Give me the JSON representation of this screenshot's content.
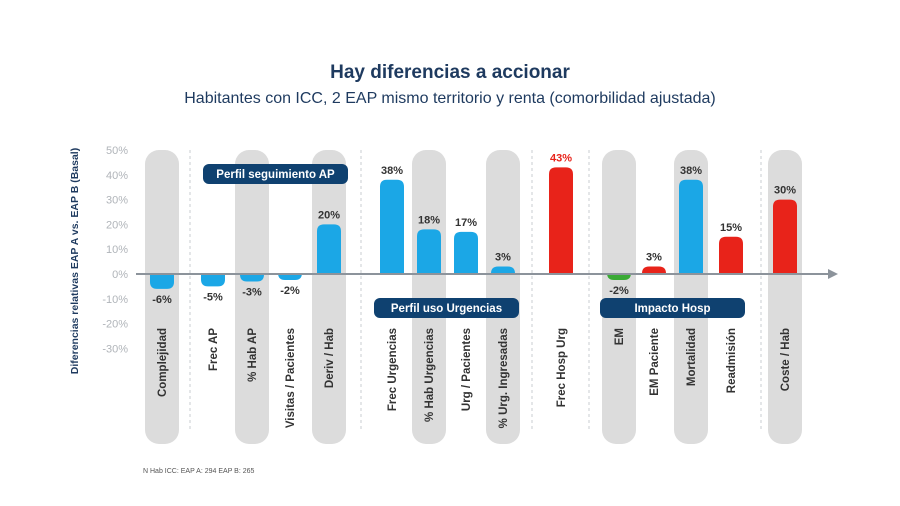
{
  "header": {
    "title": "Hay diferencias a accionar",
    "subtitle": "Habitantes con ICC, 2 EAP mismo territorio y renta (comorbilidad ajustada)"
  },
  "footnote": "N Hab ICC: EAP A: 294 EAP B: 265",
  "colors": {
    "blue": "#1ba7e6",
    "red": "#e8231a",
    "green": "#3aaa35",
    "navy": "#0f4170",
    "pill": "#dcdcdc",
    "axis": "#8c939b",
    "label": "#333333",
    "tick": "#b0b4b9"
  },
  "chart_data": {
    "type": "bar",
    "title": "Hay diferencias a accionar",
    "subtitle": "Habitantes con ICC, 2 EAP mismo territorio y renta (comorbilidad ajustada)",
    "ylabel": "Diferencias relativas EAP A vs. EAP B (Basal)",
    "xlabel": "",
    "ylim": [
      -30,
      50
    ],
    "yticks": [
      "50%",
      "40%",
      "30%",
      "20%",
      "10%",
      "0%",
      "-10%",
      "-20%",
      "-30%"
    ],
    "ytick_values": [
      50,
      40,
      30,
      20,
      10,
      0,
      -10,
      -20,
      -30
    ],
    "categories": [
      "Complejidad",
      "Frec AP",
      "% Hab AP",
      "Visitas / Pacientes",
      "Deriv / Hab",
      "Frec Urgencias",
      "% Hab Urgencias",
      "Urg / Pacientes",
      "% Urg. Ingresadas",
      "Frec Hosp Urg",
      "EM",
      "EM Paciente",
      "Mortalidad",
      "Readmisión",
      "Coste / Hab"
    ],
    "values": [
      -6,
      -5,
      -3,
      -2,
      20,
      38,
      18,
      17,
      3,
      43,
      -2,
      3,
      38,
      15,
      30
    ],
    "value_labels": [
      "-6%",
      "-5%",
      "-3%",
      "-2%",
      "20%",
      "38%",
      "18%",
      "17%",
      "3%",
      "43%",
      "-2%",
      "3%",
      "38%",
      "15%",
      "30%"
    ],
    "bar_colors": [
      "blue",
      "blue",
      "blue",
      "blue",
      "blue",
      "blue",
      "blue",
      "blue",
      "blue",
      "red",
      "green",
      "red",
      "blue",
      "red",
      "red"
    ],
    "label_colors": [
      "label",
      "label",
      "label",
      "label",
      "label",
      "label",
      "label",
      "label",
      "label",
      "red",
      "label",
      "label",
      "label",
      "label",
      "label"
    ],
    "shaded_background": [
      true,
      false,
      true,
      false,
      true,
      false,
      true,
      false,
      true,
      false,
      true,
      false,
      true,
      false,
      true
    ],
    "groups": [
      {
        "label": "Perfil seguimiento AP",
        "categories": [
          0,
          4
        ]
      },
      {
        "label": "Perfil uso Urgencias",
        "categories": [
          5,
          8
        ]
      },
      {
        "label": "Impacto Hosp",
        "categories": [
          10,
          14
        ]
      }
    ],
    "grid": false
  }
}
